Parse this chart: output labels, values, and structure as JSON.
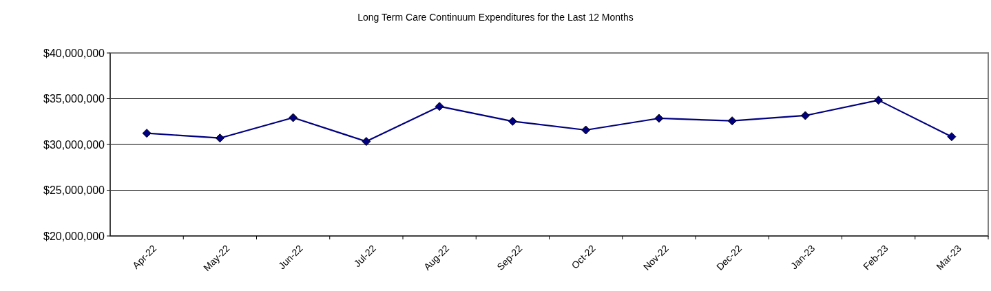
{
  "chart_data": {
    "type": "line",
    "title": "Long Term Care Continuum  Expenditures for the Last 12 Months",
    "categories": [
      "Apr-22",
      "May-22",
      "Jun-22",
      "Jul-22",
      "Aug-22",
      "Sep-22",
      "Oct-22",
      "Nov-22",
      "Dec-22",
      "Jan-23",
      "Feb-23",
      "Mar-23"
    ],
    "series": [
      {
        "color": "#000080",
        "values": [
          31230000,
          30700000,
          32930000,
          30330000,
          34160000,
          32530000,
          31580000,
          32860000,
          32580000,
          33160000,
          34840000,
          30850000
        ]
      }
    ],
    "ylim": [
      20000000,
      40000000
    ],
    "yticks": [
      {
        "value": 20000000,
        "label": "$20,000,000"
      },
      {
        "value": 25000000,
        "label": "$25,000,000"
      },
      {
        "value": 30000000,
        "label": "$30,000,000"
      },
      {
        "value": 35000000,
        "label": "$35,000,000"
      },
      {
        "value": 40000000,
        "label": "$40,000,000"
      }
    ],
    "grid": "y",
    "marker": "diamond",
    "line_style": "solid"
  }
}
